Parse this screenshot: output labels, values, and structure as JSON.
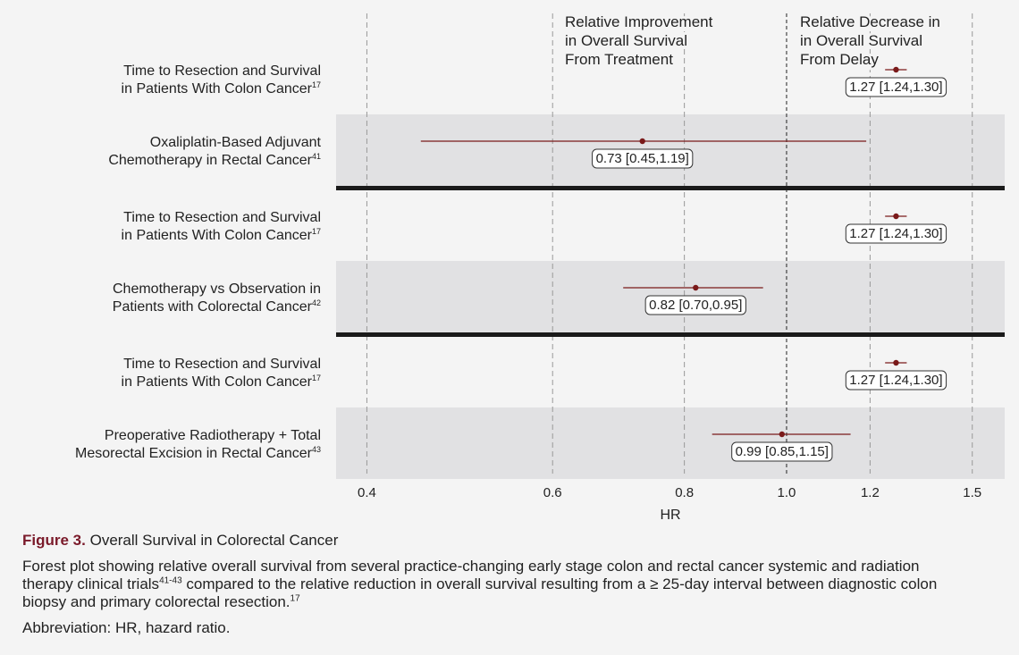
{
  "chart_data": {
    "type": "forest",
    "xlabel": "HR",
    "log_x": true,
    "xlim": [
      0.374,
      1.61
    ],
    "xticks": [
      0.4,
      0.6,
      0.8,
      {
        "value": 1,
        "label": "1.0"
      },
      1.2,
      1.5
    ],
    "reference": 1,
    "color": "#7a1a1a",
    "annotations": [
      {
        "lines": [
          "Relative Improvement",
          "in Overall Survival",
          "From Treatment"
        ]
      },
      {
        "lines": [
          "Relative Decrease in",
          "in Overall Survival",
          "From Delay"
        ]
      }
    ],
    "rows": [
      {
        "lines": [
          "Time to Resection and Survival",
          "in Patients With Colon Cancer"
        ],
        "ref": "17"
      },
      {
        "lines": [
          "Oxaliplatin-Based Adjuvant",
          "Chemotherapy in Rectal Cancer"
        ],
        "ref": "41"
      },
      {
        "lines": [
          "Time to Resection and Survival",
          "in Patients With Colon Cancer"
        ],
        "ref": "17"
      },
      {
        "lines": [
          "Chemotherapy vs Observation in",
          "Patients with Colorectal Cancer"
        ],
        "ref": "42"
      },
      {
        "lines": [
          "Time to Resection and Survival",
          "in Patients With Colon Cancer"
        ],
        "ref": "17"
      },
      {
        "lines": [
          "Preoperative Radiotherapy + Total",
          "Mesorectal Excision in Rectal Cancer"
        ],
        "ref": "43"
      }
    ],
    "values": [
      1.27,
      0.73,
      1.27,
      0.82,
      1.27,
      0.99
    ],
    "lower": [
      1.24,
      0.45,
      1.24,
      0.7,
      1.24,
      0.85
    ],
    "upper": [
      1.3,
      1.19,
      1.3,
      0.95,
      1.3,
      1.15
    ],
    "value_labels": [
      "1.27 [1.24,1.30]",
      "0.73 [0.45,1.19]",
      "1.27 [1.24,1.30]",
      "0.82 [0.70,0.95]",
      "1.27 [1.24,1.30]",
      "0.99 [0.85,1.15]"
    ],
    "shaded_rows": [
      1,
      3,
      5
    ],
    "separator_after": [
      1,
      3
    ]
  },
  "caption": {
    "figure": "Figure 3.",
    "title": "Overall Survival in Colorectal Cancer",
    "body": [
      "Forest plot showing relative overall survival from several practice-changing early stage colon and rectal cancer systemic and radiation therapy clinical trials",
      "41-43",
      " compared to the relative reduction in overall survival resulting from a ≥ 25-day interval between diagnostic colon biopsy and primary colorectal resection.",
      "17"
    ],
    "abbreviation": "Abbreviation: HR, hazard ratio."
  }
}
